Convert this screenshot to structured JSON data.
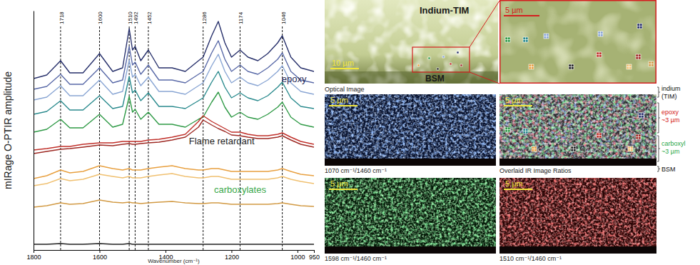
{
  "chart_data": {
    "type": "line",
    "x_label": "Wavenumber (cm⁻¹)",
    "y_label": "mIRage O-PTIR amplitude",
    "x": [
      1800,
      1760,
      1718,
      1690,
      1650,
      1600,
      1560,
      1530,
      1510,
      1500,
      1492,
      1475,
      1452,
      1420,
      1380,
      1340,
      1300,
      1286,
      1260,
      1240,
      1220,
      1200,
      1174,
      1150,
      1120,
      1090,
      1060,
      1046,
      1020,
      990,
      950
    ],
    "xlim": [
      1800,
      950
    ],
    "xticks": [
      1800,
      1600,
      1400,
      1200,
      1000,
      950
    ],
    "ylim": [
      0,
      335
    ],
    "yticks": [],
    "tick_labels": "x",
    "grid": false,
    "peaks": [
      1718,
      1600,
      1510,
      1492,
      1452,
      1286,
      1174,
      1046
    ],
    "annotations": [
      {
        "text": "epoxy",
        "x": 1048,
        "y": 235,
        "color": "#1f2a5a"
      },
      {
        "text": "Flame retardant",
        "x": 1329,
        "y": 148,
        "color": "#222222"
      },
      {
        "text": "carboxylates",
        "x": 1253,
        "y": 80,
        "color": "#3aa84a"
      }
    ],
    "series": [
      {
        "color": "#27306b",
        "values": [
          240,
          245,
          265,
          248,
          248,
          275,
          250,
          255,
          310,
          280,
          285,
          265,
          280,
          255,
          255,
          250,
          265,
          270,
          300,
          320,
          290,
          270,
          280,
          270,
          265,
          275,
          290,
          300,
          270,
          255,
          250
        ]
      },
      {
        "color": "#5a6aa8",
        "values": [
          225,
          229,
          246,
          232,
          232,
          255,
          234,
          238,
          285,
          259,
          263,
          246,
          259,
          238,
          238,
          234,
          246,
          250,
          276,
          293,
          267,
          250,
          259,
          250,
          246,
          255,
          267,
          276,
          250,
          238,
          234
        ]
      },
      {
        "color": "#8aa6d4",
        "values": [
          210,
          214,
          230,
          216,
          216,
          238,
          218,
          222,
          266,
          242,
          246,
          230,
          242,
          222,
          222,
          218,
          230,
          234,
          258,
          274,
          250,
          234,
          242,
          234,
          230,
          238,
          250,
          258,
          234,
          222,
          218
        ]
      },
      {
        "color": "#2b8b8e",
        "values": [
          190,
          194,
          209,
          196,
          196,
          216,
          198,
          201,
          243,
          220,
          224,
          209,
          220,
          201,
          201,
          198,
          209,
          213,
          235,
          250,
          228,
          213,
          220,
          213,
          209,
          216,
          228,
          235,
          213,
          201,
          198
        ]
      },
      {
        "color": "#2f9a46",
        "values": [
          165,
          169,
          183,
          171,
          171,
          190,
          172,
          176,
          215,
          193,
          197,
          183,
          193,
          176,
          176,
          172,
          183,
          186,
          207,
          221,
          200,
          186,
          193,
          186,
          183,
          190,
          200,
          207,
          186,
          176,
          172
        ]
      },
      {
        "color": "#c0302a",
        "values": [
          140,
          142,
          145,
          145,
          148,
          150,
          150,
          152,
          152,
          152,
          152,
          152,
          154,
          155,
          158,
          162,
          180,
          188,
          180,
          175,
          170,
          165,
          165,
          162,
          160,
          160,
          162,
          164,
          158,
          152,
          148
        ]
      },
      {
        "color": "#9e2a24",
        "values": [
          135,
          138,
          141,
          142,
          144,
          147,
          146,
          148,
          149,
          148,
          148,
          149,
          150,
          151,
          154,
          158,
          172,
          182,
          175,
          170,
          166,
          161,
          160,
          158,
          156,
          156,
          158,
          160,
          154,
          148,
          144
        ]
      },
      {
        "color": "#e8a040",
        "values": [
          100,
          104,
          112,
          108,
          110,
          118,
          114,
          112,
          114,
          112,
          112,
          112,
          114,
          116,
          118,
          114,
          112,
          112,
          114,
          114,
          112,
          110,
          110,
          110,
          110,
          110,
          112,
          114,
          110,
          106,
          104
        ]
      },
      {
        "color": "#f0c070",
        "values": [
          90,
          93,
          100,
          97,
          99,
          106,
          103,
          101,
          103,
          101,
          101,
          101,
          103,
          105,
          107,
          103,
          101,
          101,
          103,
          103,
          101,
          99,
          99,
          99,
          99,
          99,
          101,
          103,
          99,
          96,
          93
        ]
      },
      {
        "color": "#d29a44",
        "values": [
          60,
          62,
          66,
          64,
          65,
          70,
          67,
          66,
          67,
          66,
          66,
          65,
          66,
          67,
          68,
          66,
          65,
          65,
          66,
          66,
          65,
          64,
          64,
          64,
          64,
          64,
          65,
          66,
          64,
          62,
          61
        ]
      },
      {
        "color": "#222222",
        "values": [
          8,
          8,
          9,
          8,
          8,
          9,
          8,
          8,
          9,
          8,
          8,
          8,
          8,
          8,
          8,
          8,
          8,
          8,
          8,
          8,
          8,
          8,
          8,
          8,
          8,
          8,
          8,
          8,
          8,
          8,
          8
        ]
      }
    ]
  },
  "figure": {
    "optical_image": {
      "labels": [
        "Indium-TIM",
        "BSM"
      ],
      "scale_bar": "10 µm",
      "caption": "Optical Image"
    },
    "zoom_image": {
      "scale_bar": "5 µm"
    },
    "ir_images": [
      {
        "scale_bar": "5 µm",
        "caption": "1070 cm⁻¹/1460 cm⁻¹"
      },
      {
        "scale_bar": "5 µm",
        "caption": "Overlaid IR Image Ratios"
      },
      {
        "scale_bar": "5 µm",
        "caption": "1598 cm⁻¹/1460 cm⁻¹"
      },
      {
        "scale_bar": "5 µm",
        "caption": "1510 cm⁻¹/1460 cm⁻¹"
      }
    ],
    "layers": [
      {
        "label": "indium",
        "sub": "(TIM)"
      },
      {
        "label": "epoxy",
        "sub": "~3 µm"
      },
      {
        "label": "carboxyl",
        "sub": "~3 µm"
      },
      {
        "label": "BSM"
      }
    ]
  }
}
